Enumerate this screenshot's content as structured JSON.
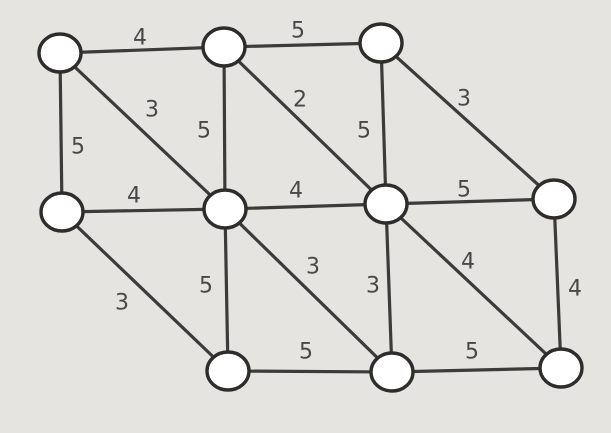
{
  "graph": {
    "nodes": [
      {
        "id": "n1"
      },
      {
        "id": "n2"
      },
      {
        "id": "n3"
      },
      {
        "id": "n4"
      },
      {
        "id": "n5"
      },
      {
        "id": "n6"
      },
      {
        "id": "n7"
      },
      {
        "id": "n8"
      },
      {
        "id": "n9"
      },
      {
        "id": "n10"
      }
    ],
    "edges": [
      {
        "from": "n1",
        "to": "n2",
        "weight": "4"
      },
      {
        "from": "n2",
        "to": "n3",
        "weight": "5"
      },
      {
        "from": "n1",
        "to": "n4",
        "weight": "5"
      },
      {
        "from": "n1",
        "to": "n5",
        "weight": "3"
      },
      {
        "from": "n2",
        "to": "n5",
        "weight": "5"
      },
      {
        "from": "n2",
        "to": "n6",
        "weight": "2"
      },
      {
        "from": "n3",
        "to": "n6",
        "weight": "5"
      },
      {
        "from": "n3",
        "to": "n7",
        "weight": "3"
      },
      {
        "from": "n4",
        "to": "n5",
        "weight": "4"
      },
      {
        "from": "n5",
        "to": "n6",
        "weight": "4"
      },
      {
        "from": "n6",
        "to": "n7",
        "weight": "5"
      },
      {
        "from": "n4",
        "to": "n8",
        "weight": "3"
      },
      {
        "from": "n5",
        "to": "n8",
        "weight": "5"
      },
      {
        "from": "n5",
        "to": "n9",
        "weight": "3"
      },
      {
        "from": "n6",
        "to": "n9",
        "weight": "3"
      },
      {
        "from": "n6",
        "to": "n10",
        "weight": "4"
      },
      {
        "from": "n7",
        "to": "n10",
        "weight": "4"
      },
      {
        "from": "n8",
        "to": "n9",
        "weight": "5"
      },
      {
        "from": "n9",
        "to": "n10",
        "weight": "5"
      }
    ]
  }
}
